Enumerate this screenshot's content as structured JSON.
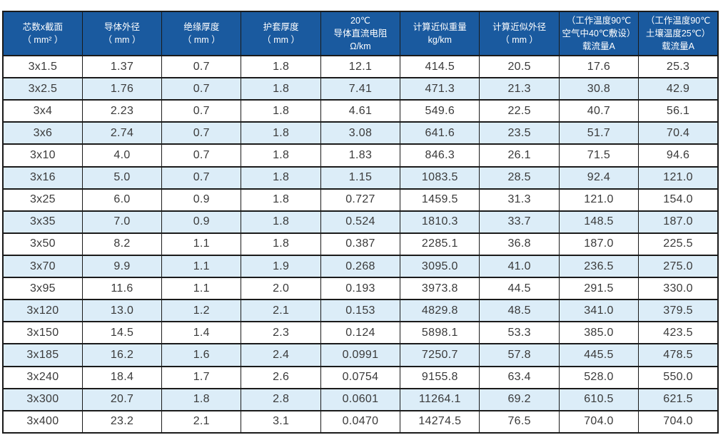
{
  "page": {
    "background": "#ffffff"
  },
  "table": {
    "title": "cable-specification-table",
    "colors": {
      "header_bg": "#1a5a9f",
      "header_text": "#ffffff",
      "stripe": "#dcedf8",
      "border": "#1a1a1a",
      "cell_text": "#3a3a3a"
    },
    "columns": [
      {
        "id": "cores-x-section",
        "lines": [
          "芯数x截面",
          "（ mm² ）"
        ]
      },
      {
        "id": "conductor-od",
        "lines": [
          "导体外径",
          "（ mm ）"
        ]
      },
      {
        "id": "insulation-thickness",
        "lines": [
          "绝缘厚度",
          "（ mm ）"
        ]
      },
      {
        "id": "sheath-thickness",
        "lines": [
          "护套厚度",
          "（ mm ）"
        ]
      },
      {
        "id": "dc-resistance-20c",
        "lines": [
          "20℃",
          "导体直流电阻",
          "Ω/km"
        ]
      },
      {
        "id": "approx-weight",
        "lines": [
          "计算近似重量",
          "kg/km"
        ]
      },
      {
        "id": "approx-od",
        "lines": [
          "计算近似外径",
          "（ mm ）"
        ]
      },
      {
        "id": "ampacity-air",
        "lines": [
          "（工作温度90℃",
          "空气中40℃敷设）",
          "载流量A"
        ]
      },
      {
        "id": "ampacity-soil",
        "lines": [
          "（工作温度90℃",
          "土壤温度25℃）",
          "载流量A"
        ]
      }
    ],
    "rows": [
      [
        "3x1.5",
        "1.37",
        "0.7",
        "1.8",
        "12.1",
        "414.5",
        "20.5",
        "17.6",
        "25.3"
      ],
      [
        "3x2.5",
        "1.76",
        "0.7",
        "1.8",
        "7.41",
        "471.3",
        "21.3",
        "30.8",
        "42.9"
      ],
      [
        "3x4",
        "2.23",
        "0.7",
        "1.8",
        "4.61",
        "549.6",
        "22.5",
        "40.7",
        "56.1"
      ],
      [
        "3x6",
        "2.74",
        "0.7",
        "1.8",
        "3.08",
        "641.6",
        "23.5",
        "51.7",
        "70.4"
      ],
      [
        "3x10",
        "4.0",
        "0.7",
        "1.8",
        "1.83",
        "846.3",
        "26.1",
        "71.5",
        "94.6"
      ],
      [
        "3x16",
        "5.0",
        "0.7",
        "1.8",
        "1.15",
        "1083.5",
        "28.5",
        "92.4",
        "121.0"
      ],
      [
        "3x25",
        "6.0",
        "0.9",
        "1.8",
        "0.727",
        "1459.5",
        "31.3",
        "121.0",
        "154.0"
      ],
      [
        "3x35",
        "7.0",
        "0.9",
        "1.8",
        "0.524",
        "1810.3",
        "33.7",
        "148.5",
        "187.0"
      ],
      [
        "3x50",
        "8.2",
        "1.1",
        "1.8",
        "0.387",
        "2285.1",
        "36.8",
        "187.0",
        "225.5"
      ],
      [
        "3x70",
        "9.9",
        "1.1",
        "1.9",
        "0.268",
        "3095.0",
        "41.0",
        "236.5",
        "275.0"
      ],
      [
        "3x95",
        "11.6",
        "1.1",
        "2.0",
        "0.193",
        "3973.8",
        "44.5",
        "291.5",
        "330.0"
      ],
      [
        "3x120",
        "13.0",
        "1.2",
        "2.1",
        "0.153",
        "4829.8",
        "48.5",
        "341.0",
        "379.5"
      ],
      [
        "3x150",
        "14.5",
        "1.4",
        "2.3",
        "0.124",
        "5898.1",
        "53.3",
        "385.0",
        "423.5"
      ],
      [
        "3x185",
        "16.2",
        "1.6",
        "2.4",
        "0.0991",
        "7250.7",
        "57.8",
        "445.5",
        "478.5"
      ],
      [
        "3x240",
        "18.4",
        "1.7",
        "2.6",
        "0.0754",
        "9155.8",
        "63.4",
        "528.0",
        "550.0"
      ],
      [
        "3x300",
        "20.7",
        "1.8",
        "2.8",
        "0.0601",
        "11264.1",
        "69.2",
        "610.5",
        "621.5"
      ],
      [
        "3x400",
        "23.2",
        "2.1",
        "3.1",
        "0.0470",
        "14274.5",
        "76.5",
        "704.0",
        "704.0"
      ]
    ]
  }
}
